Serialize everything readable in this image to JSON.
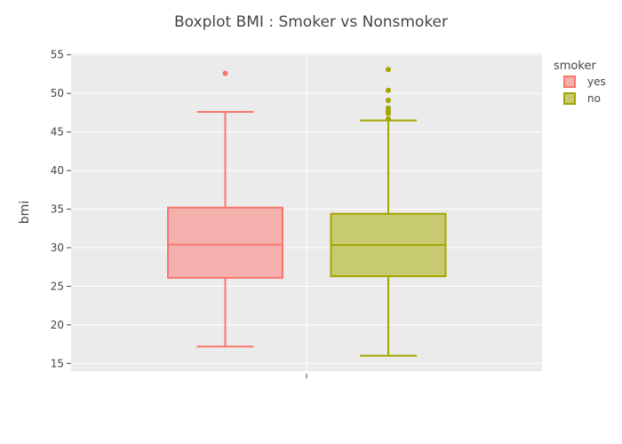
{
  "chart_data": {
    "type": "boxplot",
    "title": "Boxplot BMI : Smoker vs Nonsmoker",
    "ylabel": "bmi",
    "xlabel": "",
    "ylim": [
      14,
      55.2
    ],
    "yticks": [
      15,
      20,
      25,
      30,
      35,
      40,
      45,
      50,
      55
    ],
    "grid": true,
    "legend": {
      "title": "smoker",
      "placement": "top-right"
    },
    "series": [
      {
        "name": "yes",
        "color": "#f8766d",
        "fill": "#f4b0ad",
        "q1": 26.1,
        "median": 30.4,
        "q3": 35.2,
        "whisker_low": 17.2,
        "whisker_high": 47.6,
        "outliers": [
          52.6
        ]
      },
      {
        "name": "no",
        "color": "#a3a500",
        "fill": "#c8ca72",
        "q1": 26.3,
        "median": 30.35,
        "q3": 34.4,
        "whisker_low": 16.0,
        "whisker_high": 46.5,
        "outliers": [
          46.7,
          47.4,
          47.7,
          48.1,
          49.1,
          50.4,
          53.1
        ]
      }
    ]
  }
}
